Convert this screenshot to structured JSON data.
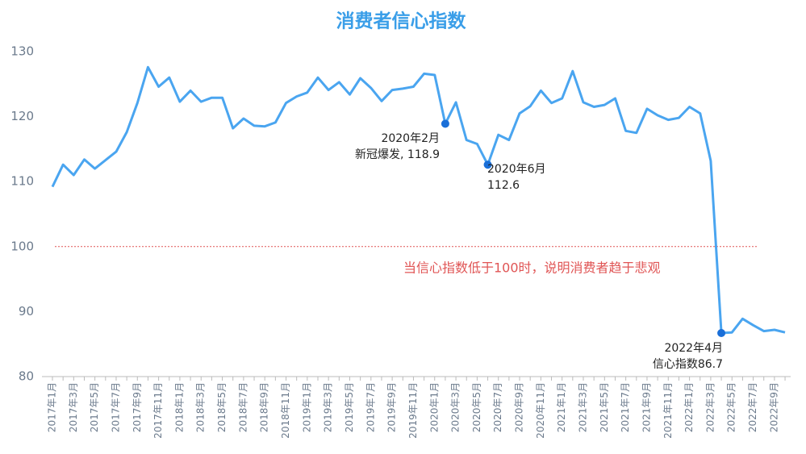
{
  "chart_data": {
    "type": "line",
    "title": "消费者信心指数",
    "categories": [
      "2017年1月",
      null,
      "2017年3月",
      null,
      "2017年5月",
      null,
      "2017年7月",
      null,
      "2017年9月",
      null,
      "2017年11月",
      null,
      "2018年1月",
      null,
      "2018年3月",
      null,
      "2018年5月",
      null,
      "2018年7月",
      null,
      "2018年9月",
      null,
      "2018年11月",
      null,
      "2019年1月",
      null,
      "2019年3月",
      null,
      "2019年5月",
      null,
      "2019年7月",
      null,
      "2019年9月",
      null,
      "2019年11月",
      null,
      "2020年1月",
      null,
      "2020年3月",
      null,
      "2020年5月",
      null,
      "2020年7月",
      null,
      "2020年9月",
      null,
      "2020年11月",
      null,
      "2021年1月",
      null,
      "2021年3月",
      null,
      "2021年5月",
      null,
      "2021年7月",
      null,
      "2021年9月",
      null,
      "2021年11月",
      null,
      "2022年1月",
      null,
      "2022年3月",
      null,
      "2022年5月",
      null,
      "2022年7月",
      null,
      "2022年9月",
      null
    ],
    "series": [
      {
        "name": "消费者信心指数",
        "color": "#4aa5f0",
        "values": [
          109.2,
          112.6,
          111.0,
          113.4,
          112.0,
          113.3,
          114.6,
          117.6,
          122.1,
          127.6,
          124.6,
          126.0,
          122.3,
          124.0,
          122.3,
          122.9,
          122.9,
          118.2,
          119.7,
          118.6,
          118.5,
          119.1,
          122.1,
          123.1,
          123.7,
          126.0,
          124.1,
          125.3,
          123.4,
          125.9,
          124.4,
          122.4,
          124.1,
          124.3,
          124.6,
          126.6,
          126.4,
          118.9,
          122.2,
          116.4,
          115.8,
          112.6,
          117.2,
          116.4,
          120.5,
          121.6,
          124.0,
          122.1,
          122.8,
          127.0,
          122.2,
          121.5,
          121.8,
          122.8,
          117.8,
          117.5,
          121.2,
          120.2,
          119.5,
          119.8,
          121.5,
          120.5,
          113.2,
          86.7,
          86.8,
          88.9,
          87.9,
          87.0,
          87.2,
          86.8
        ]
      }
    ],
    "ylim": [
      80,
      130
    ],
    "yticks": [
      80,
      90,
      100,
      110,
      120,
      130
    ],
    "reference_line": {
      "value": 100,
      "color": "#e05555",
      "label": "当信心指数低于100时，说明消费者趋于悲观"
    },
    "annotations": [
      {
        "lines": [
          "2020年2月",
          "新冠爆发, 118.9"
        ]
      },
      {
        "lines": [
          "2020年6月",
          "112.6"
        ]
      },
      {
        "lines": [
          "2022年4月",
          "信心指数86.7"
        ]
      }
    ],
    "marker_color": "#1a6fd8"
  }
}
